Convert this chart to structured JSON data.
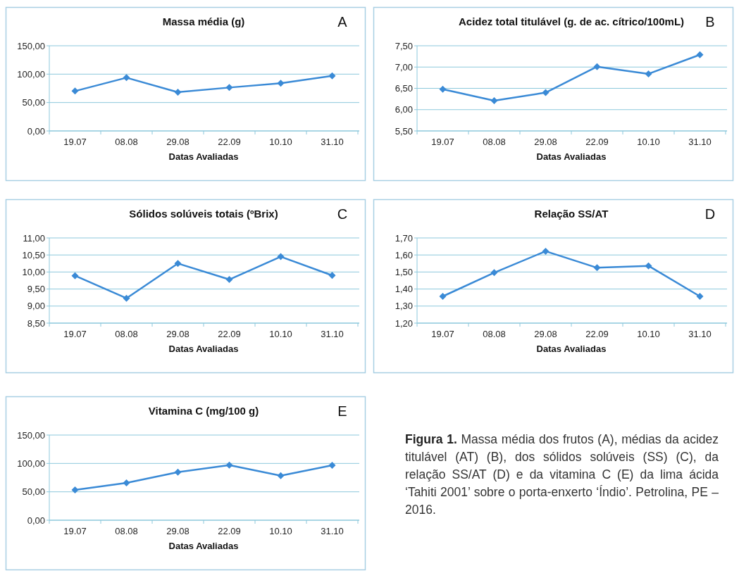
{
  "chart_data": [
    {
      "type": "line",
      "title": "Massa média (g)",
      "xlabel": "Datas Avaliadas",
      "annotations": [
        "A"
      ],
      "categories": [
        "19.07",
        "08.08",
        "29.08",
        "22.09",
        "10.10",
        "31.10"
      ],
      "series": [
        {
          "color": "#3a8ad6",
          "values": [
            70.2,
            93.8,
            68.2,
            76.4,
            83.9,
            97.1
          ]
        }
      ],
      "ylim": [
        0,
        150
      ],
      "yticks": [
        {
          "value": 0,
          "label": "0,00"
        },
        {
          "value": 50,
          "label": "50,00"
        },
        {
          "value": 100,
          "label": "100,00"
        },
        {
          "value": 150,
          "label": "150,00"
        }
      ],
      "grid": "y",
      "marker": "diamond"
    },
    {
      "type": "line",
      "title": "Acidez total titulável (g. de ac. cítrico/100mL)",
      "xlabel": "Datas Avaliadas",
      "annotations": [
        "B"
      ],
      "categories": [
        "19.07",
        "08.08",
        "29.08",
        "22.09",
        "10.10",
        "31.10"
      ],
      "series": [
        {
          "color": "#3a8ad6",
          "values": [
            6.48,
            6.21,
            6.4,
            7.01,
            6.84,
            7.29
          ]
        }
      ],
      "ylim": [
        5.5,
        7.5
      ],
      "yticks": [
        {
          "value": 5.5,
          "label": "5,50"
        },
        {
          "value": 6,
          "label": "6,00"
        },
        {
          "value": 6.5,
          "label": "6,50"
        },
        {
          "value": 7,
          "label": "7,00"
        },
        {
          "value": 7.5,
          "label": "7,50"
        }
      ],
      "grid": "y",
      "marker": "diamond"
    },
    {
      "type": "line",
      "title": "Sólidos solúveis totais (ºBrix)",
      "xlabel": "Datas Avaliadas",
      "annotations": [
        "C"
      ],
      "categories": [
        "19.07",
        "08.08",
        "29.08",
        "22.09",
        "10.10",
        "31.10"
      ],
      "series": [
        {
          "color": "#3a8ad6",
          "values": [
            9.89,
            9.23,
            10.25,
            9.78,
            10.45,
            9.9
          ]
        }
      ],
      "ylim": [
        8.5,
        11
      ],
      "yticks": [
        {
          "value": 8.5,
          "label": "8,50"
        },
        {
          "value": 9,
          "label": "9,00"
        },
        {
          "value": 9.5,
          "label": "9,50"
        },
        {
          "value": 10,
          "label": "10,00"
        },
        {
          "value": 10.5,
          "label": "10,50"
        },
        {
          "value": 11,
          "label": "11,00"
        }
      ],
      "grid": "y",
      "marker": "diamond"
    },
    {
      "type": "line",
      "title": "Relação SS/AT",
      "xlabel": "Datas Avaliadas",
      "annotations": [
        "D"
      ],
      "categories": [
        "19.07",
        "08.08",
        "29.08",
        "22.09",
        "10.10",
        "31.10"
      ],
      "series": [
        {
          "color": "#3a8ad6",
          "values": [
            1.357,
            1.496,
            1.622,
            1.525,
            1.536,
            1.357
          ]
        }
      ],
      "ylim": [
        1.2,
        1.7
      ],
      "yticks": [
        {
          "value": 1.2,
          "label": "1,20"
        },
        {
          "value": 1.3,
          "label": "1,30"
        },
        {
          "value": 1.4,
          "label": "1,40"
        },
        {
          "value": 1.5,
          "label": "1,50"
        },
        {
          "value": 1.6,
          "label": "1,60"
        },
        {
          "value": 1.7,
          "label": "1,70"
        }
      ],
      "grid": "y",
      "marker": "diamond"
    },
    {
      "type": "line",
      "title": "Vitamina C (mg/100 g)",
      "xlabel": "Datas Avaliadas",
      "annotations": [
        "E"
      ],
      "categories": [
        "19.07",
        "08.08",
        "29.08",
        "22.09",
        "10.10",
        "31.10"
      ],
      "series": [
        {
          "color": "#3a8ad6",
          "values": [
            53.4,
            65.8,
            84.7,
            97.0,
            78.5,
            96.6
          ]
        }
      ],
      "ylim": [
        0,
        150
      ],
      "yticks": [
        {
          "value": 0,
          "label": "0,00"
        },
        {
          "value": 50,
          "label": "50,00"
        },
        {
          "value": 100,
          "label": "100,00"
        },
        {
          "value": 150,
          "label": "150,00"
        }
      ],
      "grid": "y",
      "marker": "diamond"
    },
    {
      "type": "other",
      "title": "Figura 1.",
      "annotations": [
        "Massa média dos frutos (A), médias da acidez titulável (AT) (B), dos sólidos solúveis (SS) (C), da relação SS/AT (D) e da vitamina C (E) da lima ácida ‘Tahiti 2001’ sobre o porta-enxerto ‘Índio’. Petrolina, PE – 2016."
      ]
    }
  ]
}
